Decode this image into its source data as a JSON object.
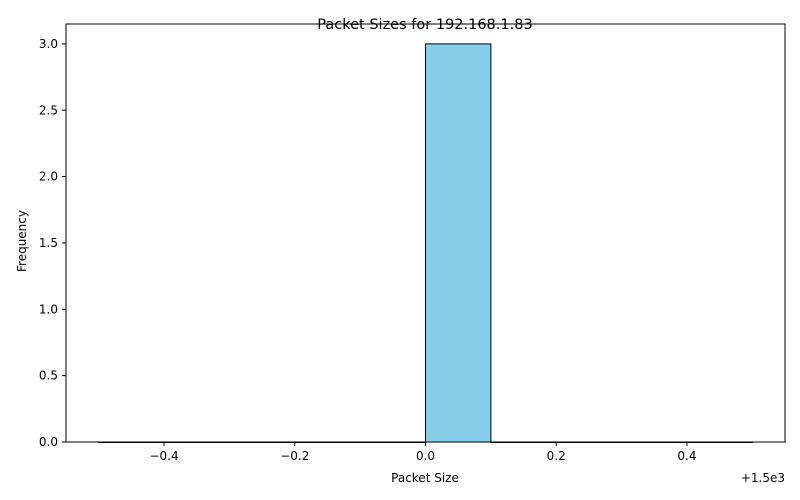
{
  "chart_data": {
    "type": "bar",
    "title": "Packet Sizes for 192.168.1.83",
    "xlabel": "Packet Size",
    "ylabel": "Frequency",
    "x_offset_label": "+1.5e3",
    "xlim": [
      -0.55,
      0.55
    ],
    "ylim": [
      0,
      3.15
    ],
    "xticks": [
      -0.4,
      -0.2,
      0.0,
      0.2,
      0.4
    ],
    "xtick_labels": [
      "−0.4",
      "−0.2",
      "0.0",
      "0.2",
      "0.4"
    ],
    "yticks": [
      0.0,
      0.5,
      1.0,
      1.5,
      2.0,
      2.5,
      3.0
    ],
    "ytick_labels": [
      "0.0",
      "0.5",
      "1.0",
      "1.5",
      "2.0",
      "2.5",
      "3.0"
    ],
    "bins": [
      {
        "start": -0.5,
        "end": -0.4,
        "count": 0
      },
      {
        "start": -0.4,
        "end": -0.3,
        "count": 0
      },
      {
        "start": -0.3,
        "end": -0.2,
        "count": 0
      },
      {
        "start": -0.2,
        "end": -0.1,
        "count": 0
      },
      {
        "start": -0.1,
        "end": 0.0,
        "count": 0
      },
      {
        "start": 0.0,
        "end": 0.1,
        "count": 3
      },
      {
        "start": 0.1,
        "end": 0.2,
        "count": 0
      },
      {
        "start": 0.2,
        "end": 0.3,
        "count": 0
      },
      {
        "start": 0.3,
        "end": 0.4,
        "count": 0
      },
      {
        "start": 0.4,
        "end": 0.5,
        "count": 0
      }
    ],
    "bar_color": "#87ceeb",
    "edge_color": "#000000",
    "grid": false,
    "legend": "none"
  }
}
